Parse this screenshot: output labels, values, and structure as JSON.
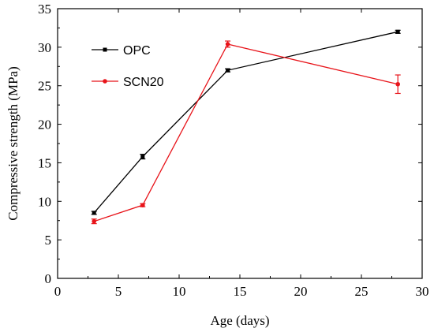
{
  "chart_data": {
    "type": "line",
    "title": "",
    "xlabel": "Age (days)",
    "ylabel": "Compressive strength (MPa)",
    "xlim": [
      0,
      30
    ],
    "ylim": [
      0,
      35
    ],
    "xticks": [
      0,
      5,
      10,
      15,
      20,
      25,
      30
    ],
    "yticks": [
      0,
      5,
      10,
      15,
      20,
      25,
      30,
      35
    ],
    "grid": false,
    "legend_position": "top-left",
    "series": [
      {
        "name": "OPC",
        "color": "#000000",
        "marker": "square",
        "x": [
          3,
          7,
          14,
          28
        ],
        "y": [
          8.5,
          15.8,
          27.0,
          32.0
        ],
        "error": [
          0.2,
          0.3,
          0.2,
          0.2
        ]
      },
      {
        "name": "SCN20",
        "color": "#e8141a",
        "marker": "circle",
        "x": [
          3,
          7,
          14,
          28
        ],
        "y": [
          7.4,
          9.5,
          30.4,
          25.2
        ],
        "error": [
          0.3,
          0.2,
          0.4,
          1.2
        ]
      }
    ]
  }
}
